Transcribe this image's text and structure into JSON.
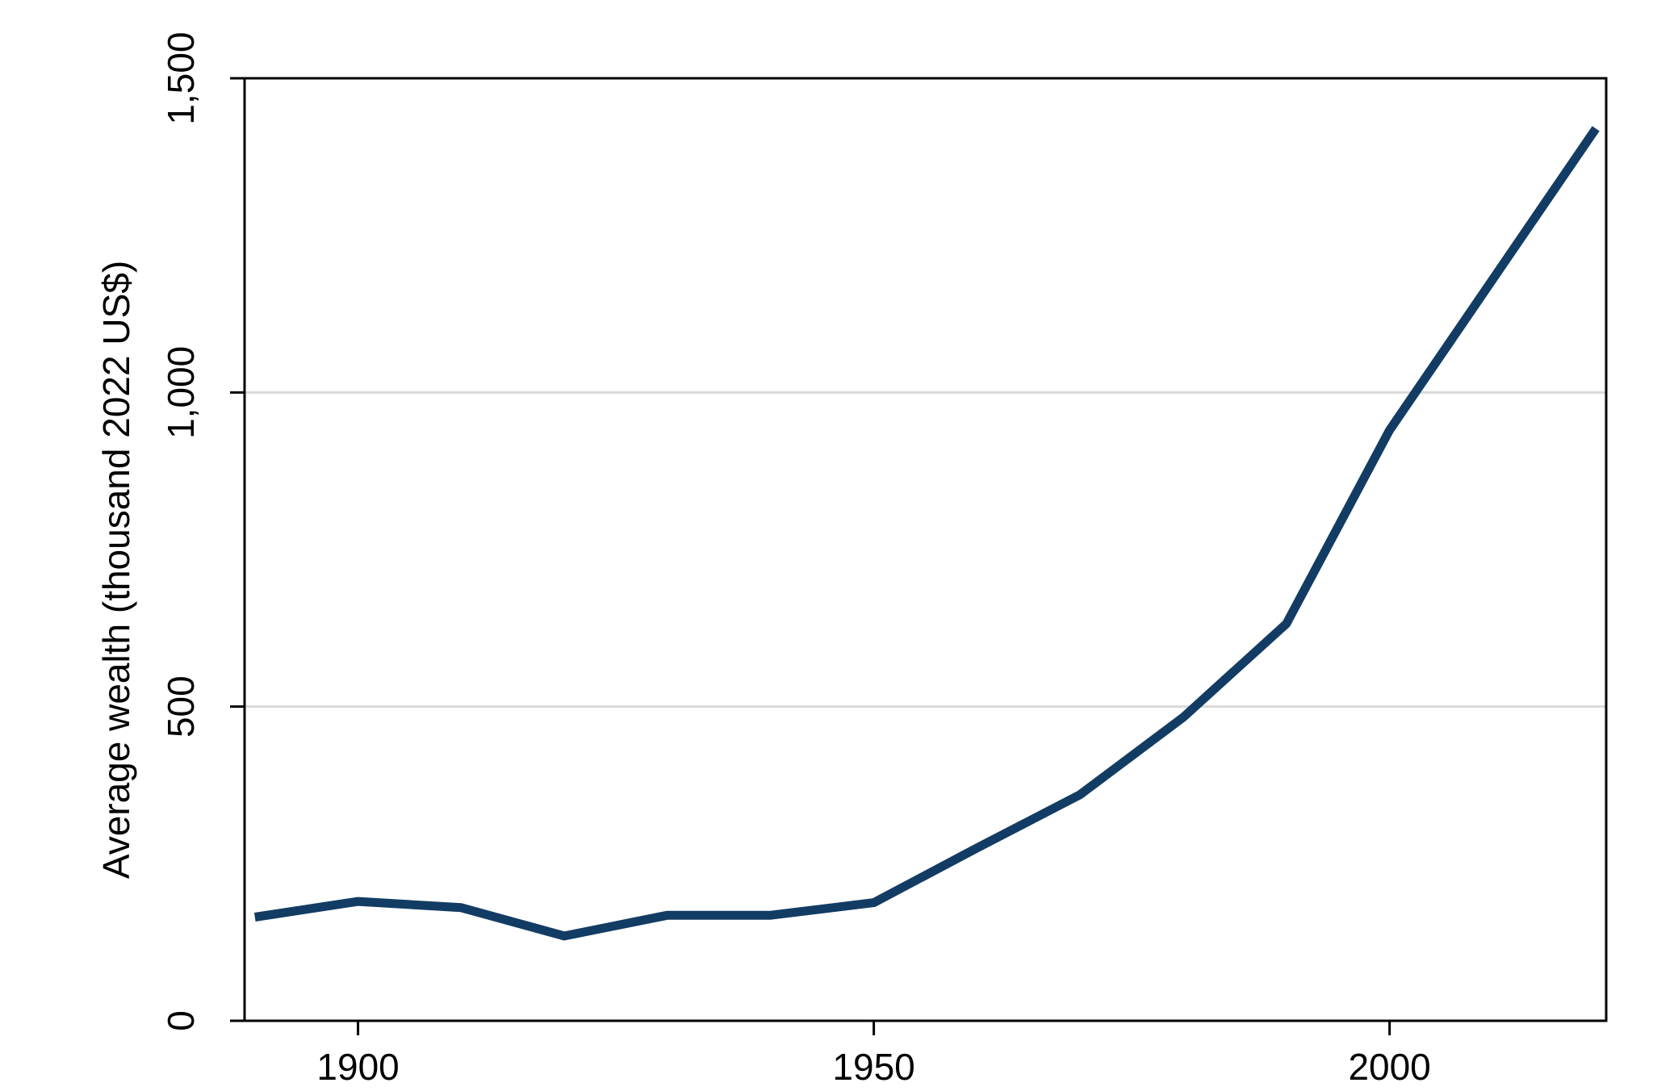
{
  "chart_data": {
    "type": "line",
    "title": "",
    "xlabel": "",
    "ylabel": "Average wealth (thousand 2022 US$)",
    "xlim": [
      1889,
      2021
    ],
    "ylim": [
      0,
      1500
    ],
    "x_ticks": [
      1900,
      1950,
      2000
    ],
    "y_ticks": [
      0,
      500,
      1000,
      1500
    ],
    "x_tick_labels": [
      "1900",
      "1950",
      "2000"
    ],
    "y_tick_labels": [
      "0",
      "500",
      "1,000",
      "1,500"
    ],
    "grid": "horizontal",
    "legend": "none",
    "series": [
      {
        "color": "#133c64",
        "x": [
          1890,
          1900,
          1910,
          1920,
          1930,
          1940,
          1950,
          1960,
          1970,
          1980,
          1990,
          2000,
          2010,
          2020
        ],
        "values": [
          165,
          190,
          180,
          135,
          168,
          168,
          188,
          275,
          360,
          483,
          632,
          940,
          1180,
          1420
        ]
      }
    ]
  }
}
